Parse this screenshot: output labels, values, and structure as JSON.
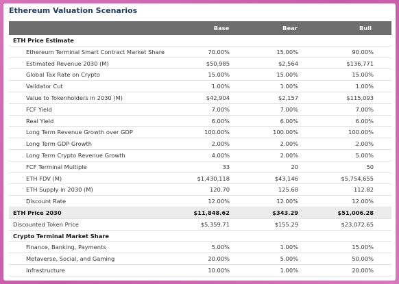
{
  "title": "Ethereum Valuation Scenarios",
  "table": {
    "columns": [
      "Base",
      "Bear",
      "Bull"
    ],
    "rows": [
      {
        "label": "ETH Price Estimate",
        "style": "section"
      },
      {
        "label": "Ethereum Terminal Smart Contract Market Share",
        "style": "indent",
        "values": [
          "70.00%",
          "15.00%",
          "90.00%"
        ]
      },
      {
        "label": "Estimated Revenue 2030 (M)",
        "style": "indent",
        "values": [
          "$50,985",
          "$2,564",
          "$136,771"
        ]
      },
      {
        "label": "Global Tax Rate on Crypto",
        "style": "indent",
        "values": [
          "15.00%",
          "15.00%",
          "15.00%"
        ]
      },
      {
        "label": "Validator Cut",
        "style": "indent",
        "values": [
          "1.00%",
          "1.00%",
          "1.00%"
        ]
      },
      {
        "label": "Value to Tokenholders in 2030 (M)",
        "style": "indent",
        "values": [
          "$42,904",
          "$2,157",
          "$115,093"
        ]
      },
      {
        "label": "FCF Yield",
        "style": "indent",
        "values": [
          "7.00%",
          "7.00%",
          "7.00%"
        ]
      },
      {
        "label": "Real Yield",
        "style": "indent",
        "values": [
          "6.00%",
          "6.00%",
          "6.00%"
        ]
      },
      {
        "label": "Long Term Revenue Growth over GDP",
        "style": "indent",
        "values": [
          "100.00%",
          "100.00%",
          "100.00%"
        ]
      },
      {
        "label": "Long Term GDP Growth",
        "style": "indent",
        "values": [
          "2.00%",
          "2.00%",
          "2.00%"
        ]
      },
      {
        "label": "Long Term Crypto Revenue Growth",
        "style": "indent",
        "values": [
          "4.00%",
          "2.00%",
          "5.00%"
        ]
      },
      {
        "label": "FCF Terminal Multiple",
        "style": "indent",
        "values": [
          "33",
          "20",
          "50"
        ]
      },
      {
        "label": "ETH FDV (M)",
        "style": "indent",
        "values": [
          "$1,430,118",
          "$43,146",
          "$5,754,655"
        ]
      },
      {
        "label": "ETH Supply in 2030 (M)",
        "style": "indent",
        "values": [
          "120.70",
          "125.68",
          "112.82"
        ]
      },
      {
        "label": "Discount Rate",
        "style": "indent",
        "values": [
          "12.00%",
          "12.00%",
          "12.00%"
        ]
      },
      {
        "label": "ETH Price 2030",
        "style": "total",
        "values": [
          "$11,848.62",
          "$343.29",
          "$51,006.28"
        ]
      },
      {
        "label": "Discounted Token Price",
        "style": "plain",
        "values": [
          "$5,359.71",
          "$155.29",
          "$23,072.65"
        ]
      },
      {
        "label": "Crypto Terminal Market Share",
        "style": "section"
      },
      {
        "label": "Finance, Banking, Payments",
        "style": "indent",
        "values": [
          "5.00%",
          "1.00%",
          "15.00%"
        ]
      },
      {
        "label": "Metaverse, Social, and Gaming",
        "style": "indent",
        "values": [
          "20.00%",
          "5.00%",
          "50.00%"
        ]
      },
      {
        "label": "Infrastructure",
        "style": "indent",
        "values": [
          "10.00%",
          "1.00%",
          "20.00%"
        ]
      }
    ]
  }
}
